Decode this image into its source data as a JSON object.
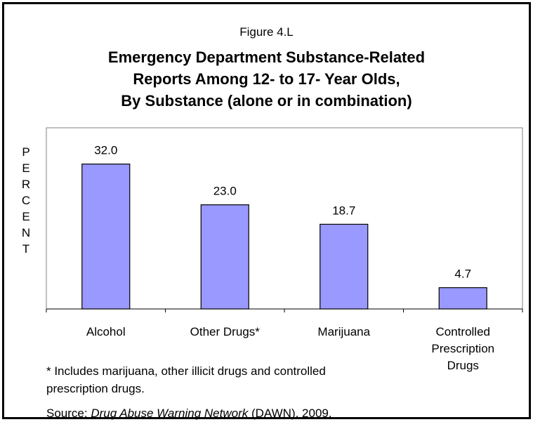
{
  "figure_label": "Figure 4.L",
  "title_lines": [
    "Emergency Department Substance-Related",
    "Reports Among 12- to 17- Year Olds,",
    "By Substance (alone or in combination)"
  ],
  "y_axis_letters": [
    "P",
    "E",
    "R",
    "C",
    "E",
    "N",
    "T"
  ],
  "footnote_lines": [
    "* Includes marijuana, other illicit drugs and controlled",
    "prescription drugs."
  ],
  "source": {
    "prefix": "Source: ",
    "title": "Drug Abuse Warning Network",
    "suffix": " (DAWN), 2009."
  },
  "colors": {
    "bar_fill": "#9999ff",
    "bar_stroke": "#000000",
    "plot_border": "#808080"
  },
  "chart_data": {
    "type": "bar",
    "title": "Emergency Department Substance-Related Reports Among 12- to 17- Year Olds, By Substance (alone or in combination)",
    "xlabel": "",
    "ylabel": "PERCENT",
    "categories": [
      [
        "Alcohol"
      ],
      [
        "Other Drugs*"
      ],
      [
        "Marijuana"
      ],
      [
        "Controlled",
        "Prescription",
        "Drugs"
      ]
    ],
    "values": [
      32.0,
      23.0,
      18.7,
      4.7
    ],
    "value_labels": [
      "32.0",
      "23.0",
      "18.7",
      "4.7"
    ],
    "ylim": [
      0,
      40
    ],
    "grid": false,
    "legend": "none"
  }
}
